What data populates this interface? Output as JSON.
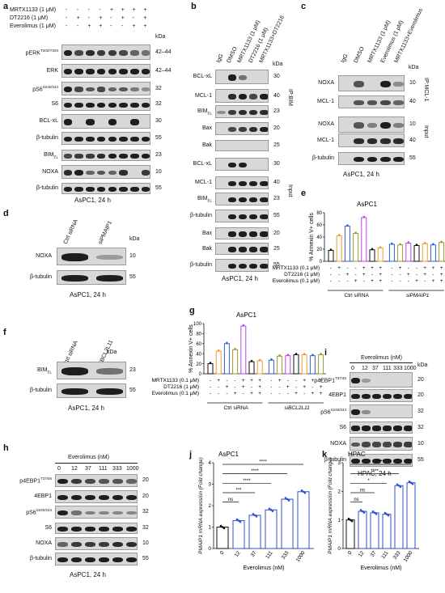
{
  "a": {
    "letter": "a",
    "conds": [
      {
        "name": "MRTX1133 (1 μM)",
        "signs": [
          "-",
          "-",
          "-",
          "-",
          "+",
          "+",
          "+",
          "+"
        ]
      },
      {
        "name": "DT2216 (1 μM)",
        "signs": [
          "-",
          "+",
          "-",
          "+",
          "-",
          "+",
          "-",
          "+"
        ]
      },
      {
        "name": "Everolimus (1 μM)",
        "signs": [
          "-",
          "-",
          "+",
          "+",
          "-",
          "-",
          "+",
          "+"
        ]
      }
    ],
    "kda_title": "kDa",
    "rows": [
      {
        "label": "pERK",
        "sup": "T202/Y204",
        "kda": "42–44"
      },
      {
        "label": "ERK",
        "sup": "",
        "kda": "42–44"
      },
      {
        "label": "pS6",
        "sup": "S240/244",
        "kda": "32"
      },
      {
        "label": "S6",
        "sup": "",
        "kda": "32"
      },
      {
        "label": "BCL-xL",
        "sup": "",
        "kda": "30"
      },
      {
        "label": "β-tubulin",
        "sup": "",
        "kda": "55"
      },
      {
        "label": "BIM",
        "sup": "",
        "sub": "EL",
        "kda": "23"
      },
      {
        "label": "NOXA",
        "sup": "",
        "kda": "10"
      },
      {
        "label": "β-tubulin",
        "sup": "",
        "kda": "55"
      }
    ],
    "caption": "AsPC1, 24 h"
  },
  "b": {
    "letter": "b",
    "lanes": [
      "IgG",
      "DMSO",
      "MRTX1133 (1 μM)",
      "DT2216 (1 μM)",
      "MRTX1133+DT2216"
    ],
    "kda_title": "kDa",
    "ip_rows": [
      {
        "label": "BCL-xL",
        "kda": "30"
      },
      {
        "label": "MCL-1",
        "kda": "40"
      },
      {
        "label": "BIM",
        "sub": "EL",
        "kda": "23"
      },
      {
        "label": "Bax",
        "kda": "20"
      },
      {
        "label": "Bak",
        "kda": "25"
      }
    ],
    "ip_tag": "IP:BIM",
    "input_rows": [
      {
        "label": "BCL-xL",
        "kda": "30"
      },
      {
        "label": "MCL-1",
        "kda": "40"
      },
      {
        "label": "BIM",
        "sub": "EL",
        "kda": "23"
      },
      {
        "label": "β-tubulin",
        "kda": "55"
      },
      {
        "label": "Bax",
        "kda": "20"
      },
      {
        "label": "Bak",
        "kda": "25"
      },
      {
        "label": "β-tubulin",
        "kda": "55"
      }
    ],
    "input_tag": "Input",
    "caption": "AsPC1, 24 h"
  },
  "c": {
    "letter": "c",
    "lanes": [
      "IgG",
      "DMSO",
      "MRTX1133 (1 μM)",
      "Everolimus (1 μM)",
      "MRTX1133+Everolimus"
    ],
    "kda_title": "kDa",
    "ip_rows": [
      {
        "label": "NOXA",
        "kda": "10"
      },
      {
        "label": "MCL-1",
        "kda": "40"
      }
    ],
    "ip_tag": "IP:MCL-1",
    "input_rows": [
      {
        "label": "NOXA",
        "kda": "10"
      },
      {
        "label": "MCL-1",
        "kda": "40"
      },
      {
        "label": "β-tubulin",
        "kda": "55"
      }
    ],
    "input_tag": "Input",
    "caption": "AsPC1, 24 h"
  },
  "d": {
    "letter": "d",
    "lanes": [
      "Ctrl siRNA",
      "siPMAIP1"
    ],
    "kda_title": "kDa",
    "rows": [
      {
        "label": "NOXA",
        "kda": "10"
      },
      {
        "label": "β-tubulin",
        "kda": "55"
      }
    ],
    "caption": "AsPC1, 24 h"
  },
  "e": {
    "letter": "e",
    "title": "AsPC1",
    "ylabel": "% Annexin V+ cells",
    "conds": [
      {
        "name": "MRTX1133 (0.1 μM)",
        "signs": [
          "-",
          "+",
          "-",
          "-",
          "+",
          "+",
          "+",
          "-",
          "+",
          "-",
          "-",
          "+",
          "+",
          "+"
        ]
      },
      {
        "name": "DT2216 (1 μM)",
        "signs": [
          "-",
          "-",
          "+",
          "-",
          "+",
          "-",
          "+",
          "-",
          "-",
          "+",
          "-",
          "+",
          "-",
          "+"
        ]
      },
      {
        "name": "Everolimus (0.1 μM)",
        "signs": [
          "-",
          "-",
          "-",
          "+",
          "-",
          "+",
          "+",
          "-",
          "-",
          "-",
          "+",
          "-",
          "+",
          "+"
        ]
      }
    ],
    "groups": [
      "Ctrl siRNA",
      "siPMAIP1"
    ]
  },
  "f": {
    "letter": "f",
    "lanes": [
      "Ctrl siRNA",
      "siBCL2L11"
    ],
    "kda_title": "kDa",
    "rows": [
      {
        "label": "BIM",
        "sub": "EL",
        "kda": "23"
      },
      {
        "label": "β-tubulin",
        "kda": "55"
      }
    ],
    "caption": "AsPC1, 24 h"
  },
  "g": {
    "letter": "g",
    "title": "AsPC1",
    "ylabel": "% Annexin V+ cells",
    "conds": [
      {
        "name": "MRTX1133 (0.1 μM)",
        "signs": [
          "-",
          "+",
          "-",
          "-",
          "+",
          "+",
          "+",
          "-",
          "+",
          "-",
          "-",
          "+",
          "+",
          "+"
        ]
      },
      {
        "name": "DT2216 (1 μM)",
        "signs": [
          "-",
          "-",
          "+",
          "-",
          "+",
          "-",
          "+",
          "-",
          "-",
          "+",
          "-",
          "+",
          "-",
          "+"
        ]
      },
      {
        "name": "Everolimus (0.1 μM)",
        "signs": [
          "-",
          "-",
          "-",
          "+",
          "-",
          "+",
          "+",
          "-",
          "-",
          "-",
          "+",
          "-",
          "+",
          "+"
        ]
      }
    ],
    "groups": [
      "Ctrl siRNA",
      "siBCL2L11"
    ]
  },
  "h": {
    "letter": "h",
    "header": "Everolimus (nM)",
    "doses": [
      "0",
      "12",
      "37",
      "111",
      "333",
      "1000"
    ],
    "rows": [
      {
        "label": "p4EBP1",
        "sup": "T37/46",
        "kda": "20"
      },
      {
        "label": "4EBP1",
        "kda": "20"
      },
      {
        "label": "pS6",
        "sup": "S240/244",
        "kda": "32"
      },
      {
        "label": "S6",
        "kda": "32"
      },
      {
        "label": "NOXA",
        "kda": "10"
      },
      {
        "label": "β-tubulin",
        "kda": "55"
      }
    ],
    "caption": "AsPC1, 24 h"
  },
  "i": {
    "letter": "i",
    "header": "Everolimus (nM)",
    "doses": [
      "0",
      "12",
      "37",
      "111",
      "333",
      "1000"
    ],
    "kda_title": "kDa",
    "rows": [
      {
        "label": "p4EBP1",
        "sup": "T37/46",
        "kda": "20"
      },
      {
        "label": "4EBP1",
        "kda": "20"
      },
      {
        "label": "pS6",
        "sup": "S240/244",
        "kda": "32"
      },
      {
        "label": "S6",
        "kda": "32"
      },
      {
        "label": "NOXA",
        "kda": "10"
      },
      {
        "label": "β-tubulin",
        "kda": "55"
      }
    ],
    "caption": "HPAC, 24 h"
  },
  "j": {
    "letter": "j",
    "title": "AsPC1",
    "ylabel": "PMAIP1 mRNA expression (Fold change)",
    "xlabel": "Everolimus (nM)",
    "sig": [
      "ns",
      "***",
      "****",
      "****",
      "****"
    ]
  },
  "k": {
    "letter": "k",
    "title": "HPAC",
    "ylabel": "PMAIP1 mRNA expression (Fold change)",
    "xlabel": "Everolimus (nM)",
    "sig": [
      "ns",
      "ns",
      "*",
      "****",
      "****"
    ]
  },
  "chart_data": [
    {
      "panel": "e",
      "type": "bar",
      "title": "AsPC1",
      "ylabel": "% Annexin V+ cells",
      "ylim": [
        0,
        80
      ],
      "yticks": [
        0,
        20,
        40,
        60,
        80
      ],
      "values": [
        18,
        42,
        58,
        46,
        72,
        19,
        22,
        28,
        27,
        30,
        26,
        29,
        27,
        31
      ],
      "colors": [
        "#111111",
        "#f39a2c",
        "#2f62d6",
        "#9a9a30",
        "#bb44ee",
        "#111111",
        "#f39a2c",
        "#2f62d6",
        "#9a9a30",
        "#bb44ee",
        "#111111",
        "#f39a2c",
        "#2f62d6",
        "#9a9a30"
      ]
    },
    {
      "panel": "g",
      "type": "bar",
      "title": "AsPC1",
      "ylabel": "% Annexin V+ cells",
      "ylim": [
        0,
        100
      ],
      "yticks": [
        0,
        20,
        40,
        60,
        80,
        100
      ],
      "values": [
        20,
        45,
        60,
        48,
        95,
        24,
        26,
        27,
        35,
        36,
        38,
        38,
        36,
        38
      ],
      "colors": [
        "#111111",
        "#f39a2c",
        "#2f62d6",
        "#9a9a30",
        "#bb44ee",
        "#111111",
        "#f39a2c",
        "#2f62d6",
        "#9a9a30",
        "#bb44ee",
        "#111111",
        "#f39a2c",
        "#2f62d6",
        "#9a9a30"
      ]
    },
    {
      "panel": "j",
      "type": "bar",
      "title": "AsPC1",
      "categories": [
        "0",
        "12",
        "37",
        "111",
        "333",
        "1000"
      ],
      "values": [
        1.0,
        1.3,
        1.55,
        1.8,
        2.3,
        2.65
      ],
      "ylim": [
        0,
        4
      ],
      "yticks": [
        0,
        1,
        2,
        3,
        4
      ],
      "xlabel": "Everolimus (nM)",
      "ylabel": "PMAIP1 mRNA expression (Fold change)"
    },
    {
      "panel": "k",
      "type": "bar",
      "title": "HPAC",
      "categories": [
        "0",
        "12",
        "37",
        "111",
        "333",
        "1000"
      ],
      "values": [
        1.0,
        1.3,
        1.25,
        1.2,
        2.2,
        2.3
      ],
      "ylim": [
        0,
        3
      ],
      "yticks": [
        0,
        1,
        2,
        3
      ],
      "xlabel": "Everolimus (nM)",
      "ylabel": "PMAIP1 mRNA expression (Fold change)"
    }
  ]
}
